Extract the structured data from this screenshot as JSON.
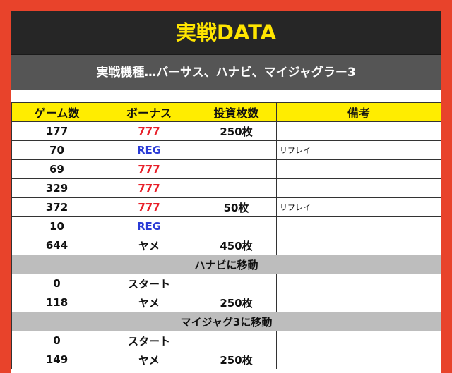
{
  "title": "実戦DATA",
  "subtitle": "実戦機種…バーサス、ハナビ、マイジャグラー3",
  "colors": {
    "frame": "#e8432b",
    "header_bg": "#ffed00",
    "title_text": "#ffe500",
    "bonus_777": "#e8202a",
    "bonus_reg": "#2a3bd6"
  },
  "table": {
    "headers": [
      "ゲーム数",
      "ボーナス",
      "投資枚数",
      "備考"
    ],
    "rows": [
      {
        "games": "177",
        "bonus": "777",
        "invest": "250枚",
        "note": ""
      },
      {
        "games": "70",
        "bonus": "REG",
        "invest": "",
        "note": "リプレイ"
      },
      {
        "games": "69",
        "bonus": "777",
        "invest": "",
        "note": ""
      },
      {
        "games": "329",
        "bonus": "777",
        "invest": "",
        "note": ""
      },
      {
        "games": "372",
        "bonus": "777",
        "invest": "50枚",
        "note": "リプレイ"
      },
      {
        "games": "10",
        "bonus": "REG",
        "invest": "",
        "note": ""
      },
      {
        "games": "644",
        "bonus": "ヤメ",
        "invest": "450枚",
        "note": ""
      },
      {
        "section": "ハナビに移動"
      },
      {
        "games": "0",
        "bonus": "スタート",
        "invest": "",
        "note": ""
      },
      {
        "games": "118",
        "bonus": "ヤメ",
        "invest": "250枚",
        "note": ""
      },
      {
        "section": "マイジャグ3に移動"
      },
      {
        "games": "0",
        "bonus": "スタート",
        "invest": "",
        "note": ""
      },
      {
        "games": "149",
        "bonus": "ヤメ",
        "invest": "250枚",
        "note": ""
      }
    ]
  }
}
